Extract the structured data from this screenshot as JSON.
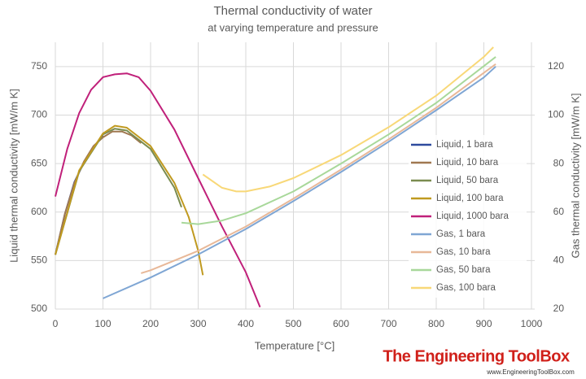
{
  "chart_data": {
    "type": "line",
    "title": "Thermal conductivity of water",
    "subtitle": "at varying temperature and pressure",
    "xlabel": "Temperature  [°C]",
    "ylabel": "Liquid thermal conductivity  [mW/m K]",
    "y2label": "Gas thermal conductivity  [mW/m K]",
    "xlim": [
      0,
      1000
    ],
    "xticks": [
      0,
      100,
      200,
      300,
      400,
      500,
      600,
      700,
      800,
      900,
      1000
    ],
    "ylim": [
      500,
      775
    ],
    "yticks": [
      500,
      550,
      600,
      650,
      700,
      750
    ],
    "y2lim": [
      20,
      130
    ],
    "y2ticks": [
      20,
      40,
      60,
      80,
      100,
      120
    ],
    "grid": true,
    "legend": "right",
    "series": [
      {
        "name": "Liquid, 1 bara",
        "color": "#2e4a9e",
        "x": [
          0,
          20,
          40,
          60,
          80,
          100
        ],
        "values": [
          556,
          598,
          631,
          651,
          667,
          679
        ]
      },
      {
        "name": "Liquid, 10 bara",
        "color": "#a07850",
        "x": [
          0,
          20,
          40,
          60,
          80,
          100,
          120,
          140,
          160,
          180
        ],
        "values": [
          556,
          598,
          630,
          652,
          668,
          677,
          683,
          683,
          679,
          671
        ]
      },
      {
        "name": "Liquid, 50 bara",
        "color": "#7a8c50",
        "x": [
          0,
          50,
          100,
          125,
          150,
          200,
          250,
          265
        ],
        "values": [
          556,
          642,
          680,
          686,
          684,
          665,
          625,
          605
        ]
      },
      {
        "name": "Liquid, 100 bara",
        "color": "#c09a20",
        "x": [
          0,
          50,
          100,
          125,
          150,
          200,
          250,
          280,
          300,
          310
        ],
        "values": [
          556,
          643,
          681,
          689,
          687,
          668,
          630,
          595,
          560,
          535
        ]
      },
      {
        "name": "Liquid, 1000 bara",
        "color": "#c0207a",
        "x": [
          0,
          25,
          50,
          75,
          100,
          125,
          150,
          175,
          200,
          250,
          300,
          350,
          400,
          430
        ],
        "values": [
          616,
          665,
          702,
          726,
          739,
          742,
          743,
          739,
          725,
          685,
          635,
          585,
          538,
          502
        ]
      },
      {
        "name": "Gas, 1 bara",
        "color": "#7fa6d4",
        "axis": "y2",
        "x": [
          100,
          200,
          300,
          400,
          500,
          600,
          700,
          800,
          900,
          925
        ],
        "values": [
          24.4,
          33,
          42.5,
          53,
          64.5,
          76.5,
          89,
          102,
          115.5,
          120
        ]
      },
      {
        "name": "Gas, 10 bara",
        "color": "#e8b898",
        "axis": "y2",
        "x": [
          180,
          200,
          300,
          400,
          500,
          600,
          700,
          800,
          925
        ],
        "values": [
          34.8,
          36,
          44,
          54,
          65.5,
          77.5,
          90,
          103,
          121
        ]
      },
      {
        "name": "Gas, 50 bara",
        "color": "#a8d89a",
        "axis": "y2",
        "x": [
          265,
          300,
          350,
          400,
          500,
          600,
          700,
          800,
          925
        ],
        "values": [
          55.6,
          55,
          56.5,
          59.5,
          68.5,
          80,
          92,
          105,
          124
        ]
      },
      {
        "name": "Gas, 100 bara",
        "color": "#f8d878",
        "axis": "y2",
        "x": [
          310,
          350,
          380,
          400,
          450,
          500,
          600,
          700,
          800,
          900,
          920
        ],
        "values": [
          75.5,
          70,
          68.5,
          68.5,
          70.5,
          74,
          83.5,
          95,
          108,
          124,
          128
        ]
      }
    ],
    "annotations": [
      "The Engineering ToolBox",
      "www.EngineeringToolBox.com"
    ]
  }
}
